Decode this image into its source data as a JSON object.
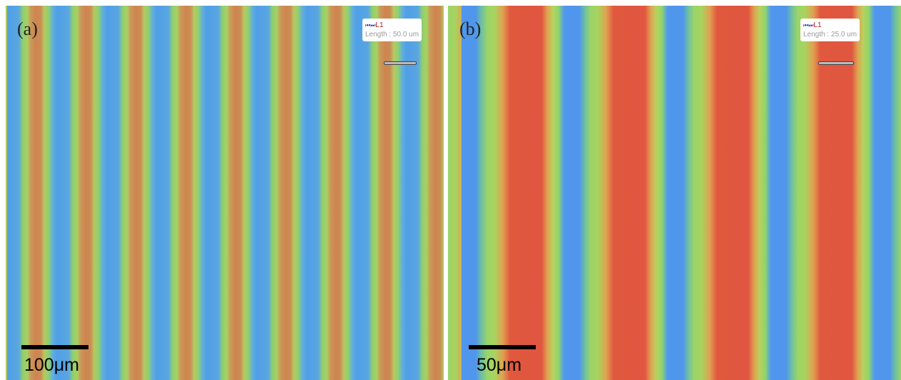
{
  "panels": [
    {
      "label": "(a)",
      "marker": "L1",
      "length": "Length : 50.0 um",
      "scale_bar": "100μm"
    },
    {
      "label": "(b)",
      "marker": "L1",
      "length": "Length : 25.0 um",
      "scale_bar": "50μm"
    }
  ]
}
